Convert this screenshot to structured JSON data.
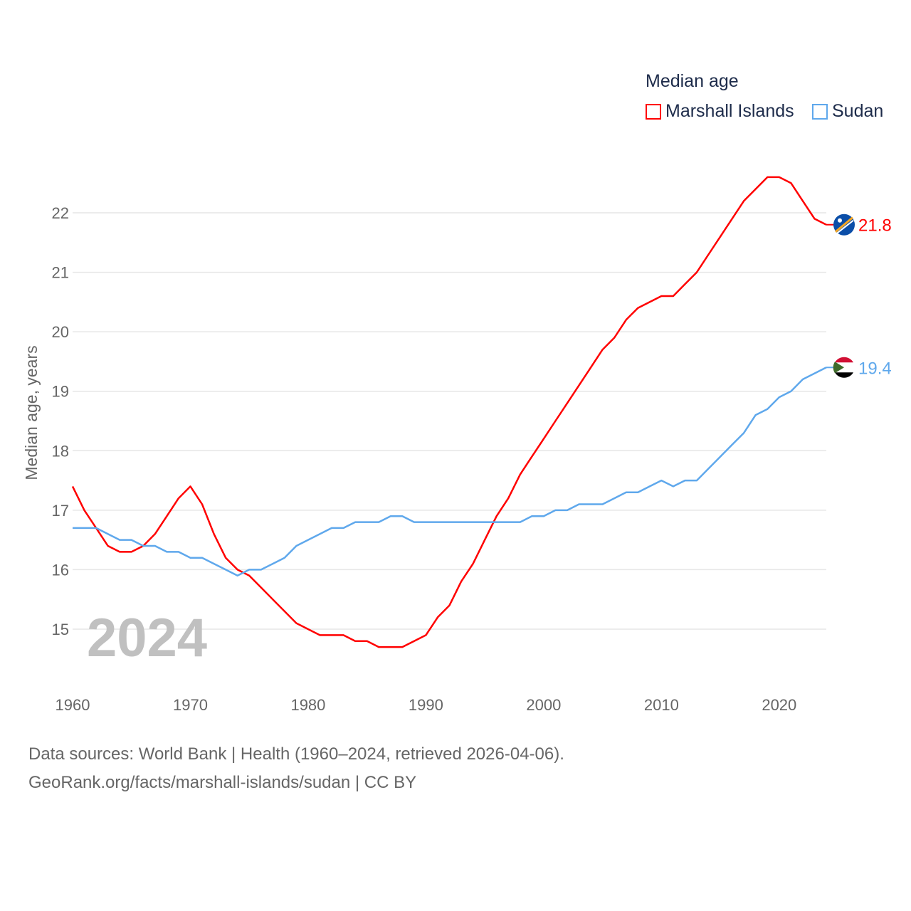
{
  "chart_data": {
    "type": "line",
    "title": "Median age",
    "xlabel": "",
    "ylabel": "Median age, years",
    "xlim": [
      1960,
      2024
    ],
    "ylim": [
      14.3,
      22.8
    ],
    "x_ticks": [
      1960,
      1970,
      1980,
      1990,
      2000,
      2010,
      2020
    ],
    "y_ticks": [
      15,
      16,
      17,
      18,
      19,
      20,
      21,
      22
    ],
    "grid": true,
    "legend_position": "top-right",
    "watermark_year": "2024",
    "x": [
      1960,
      1961,
      1962,
      1963,
      1964,
      1965,
      1966,
      1967,
      1968,
      1969,
      1970,
      1971,
      1972,
      1973,
      1974,
      1975,
      1976,
      1977,
      1978,
      1979,
      1980,
      1981,
      1982,
      1983,
      1984,
      1985,
      1986,
      1987,
      1988,
      1989,
      1990,
      1991,
      1992,
      1993,
      1994,
      1995,
      1996,
      1997,
      1998,
      1999,
      2000,
      2001,
      2002,
      2003,
      2004,
      2005,
      2006,
      2007,
      2008,
      2009,
      2010,
      2011,
      2012,
      2013,
      2014,
      2015,
      2016,
      2017,
      2018,
      2019,
      2020,
      2021,
      2022,
      2023,
      2024
    ],
    "series": [
      {
        "name": "Marshall Islands",
        "color": "#ff0000",
        "end_label": "21.8",
        "values": [
          17.4,
          17.0,
          16.7,
          16.4,
          16.3,
          16.3,
          16.4,
          16.6,
          16.9,
          17.2,
          17.4,
          17.1,
          16.6,
          16.2,
          16.0,
          15.9,
          15.7,
          15.5,
          15.3,
          15.1,
          15.0,
          14.9,
          14.9,
          14.9,
          14.8,
          14.8,
          14.7,
          14.7,
          14.7,
          14.8,
          14.9,
          15.2,
          15.4,
          15.8,
          16.1,
          16.5,
          16.9,
          17.2,
          17.6,
          17.9,
          18.2,
          18.5,
          18.8,
          19.1,
          19.4,
          19.7,
          19.9,
          20.2,
          20.4,
          20.5,
          20.6,
          20.6,
          20.8,
          21.0,
          21.3,
          21.6,
          21.9,
          22.2,
          22.4,
          22.6,
          22.6,
          22.5,
          22.2,
          21.9,
          21.8
        ]
      },
      {
        "name": "Sudan",
        "color": "#5fa8ec",
        "end_label": "19.4",
        "values": [
          16.7,
          16.7,
          16.7,
          16.6,
          16.5,
          16.5,
          16.4,
          16.4,
          16.3,
          16.3,
          16.2,
          16.2,
          16.1,
          16.0,
          15.9,
          16.0,
          16.0,
          16.1,
          16.2,
          16.4,
          16.5,
          16.6,
          16.7,
          16.7,
          16.8,
          16.8,
          16.8,
          16.9,
          16.9,
          16.8,
          16.8,
          16.8,
          16.8,
          16.8,
          16.8,
          16.8,
          16.8,
          16.8,
          16.8,
          16.9,
          16.9,
          17.0,
          17.0,
          17.1,
          17.1,
          17.1,
          17.2,
          17.3,
          17.3,
          17.4,
          17.5,
          17.4,
          17.5,
          17.5,
          17.7,
          17.9,
          18.1,
          18.3,
          18.6,
          18.7,
          18.9,
          19.0,
          19.2,
          19.3,
          19.4
        ]
      }
    ]
  },
  "footer": {
    "line1": "Data sources: World Bank | Health (1960–2024, retrieved 2026-04-06).",
    "line2": "GeoRank.org/facts/marshall-islands/sudan | CC BY"
  }
}
